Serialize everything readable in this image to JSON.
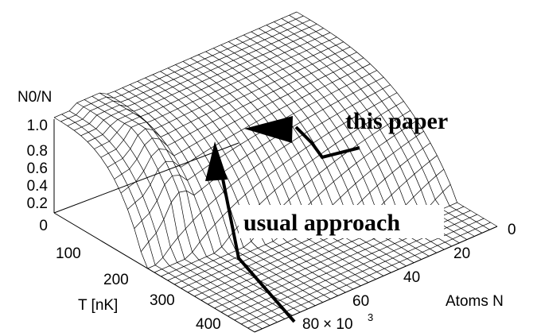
{
  "chart_data": {
    "type": "surface",
    "zlabel": "N0/N",
    "xlabel": "T [nK]",
    "ylabel": "Atoms N",
    "z_ticks": [
      "0",
      "0.2",
      "0.4",
      "0.6",
      "0.8",
      "1.0"
    ],
    "t_ticks": [
      "100",
      "200",
      "300",
      "400"
    ],
    "n_ticks": [
      "0",
      "20",
      "40",
      "60",
      "80"
    ],
    "n_multiplier": "× 10",
    "n_exponent": "3",
    "t_range": [
      0,
      450
    ],
    "n_range": [
      0,
      90000
    ],
    "z_range": [
      0,
      1.0
    ],
    "annotations": {
      "this_paper": "this paper",
      "usual_approach": "usual approach"
    }
  }
}
